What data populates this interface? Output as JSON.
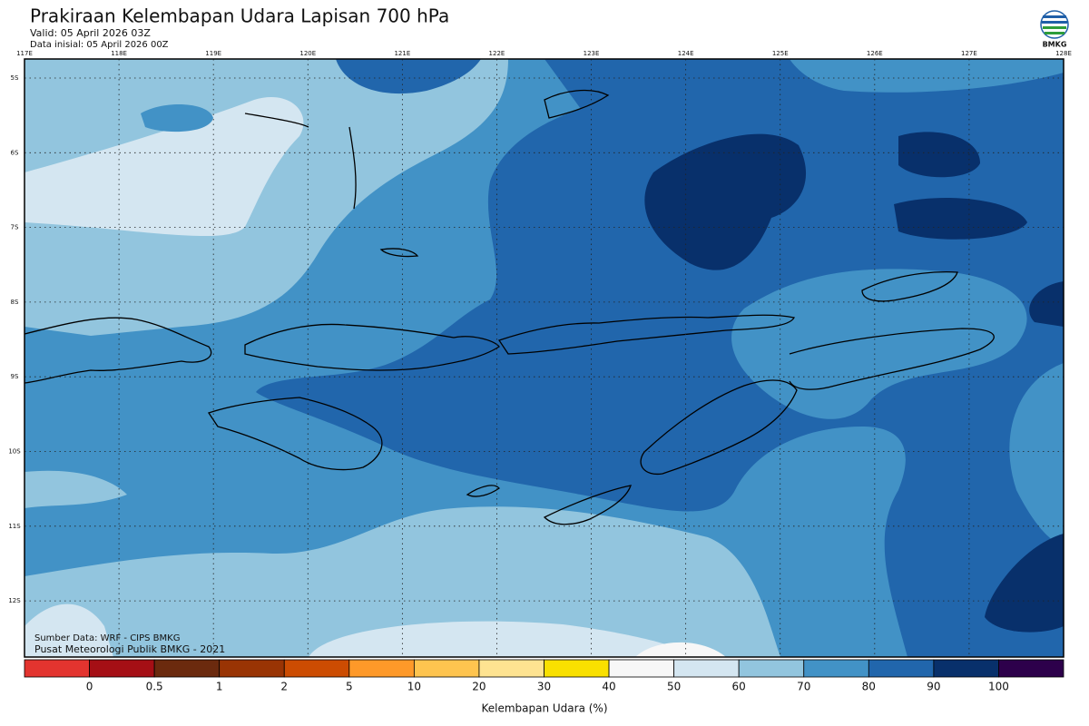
{
  "header": {
    "title": "Prakiraan Kelembapan Udara Lapisan 700 hPa",
    "valid": "Valid: 05 April 2026 03Z",
    "initial": "Data inisial: 05 April 2026 00Z",
    "logo": "BMKG"
  },
  "map": {
    "lon_labels": [
      "117E",
      "118E",
      "119E",
      "120E",
      "121E",
      "122E",
      "123E",
      "124E",
      "125E",
      "126E",
      "127E",
      "128E"
    ],
    "lat_labels": [
      "5S",
      "6S",
      "7S",
      "8S",
      "9S",
      "10S",
      "11S",
      "12S"
    ],
    "source": "Sumber Data: WRF - CIPS BMKG",
    "credit": "Pusat Meteorologi Publik BMKG - 2021"
  },
  "legend": {
    "colors": [
      "#e3342f",
      "#a50f15",
      "#6b2a0e",
      "#993404",
      "#cc4c02",
      "#fe9929",
      "#fec44f",
      "#fee391",
      "#f9e000",
      "#f7f7f7",
      "#d4e6f1",
      "#92c5de",
      "#4292c6",
      "#2166ac",
      "#08306b",
      "#2d004b"
    ],
    "labels": [
      0,
      0.5,
      1,
      2,
      5,
      10,
      20,
      30,
      40,
      50,
      60,
      70,
      80,
      90,
      100
    ],
    "title": "Kelembapan Udara (%)"
  }
}
